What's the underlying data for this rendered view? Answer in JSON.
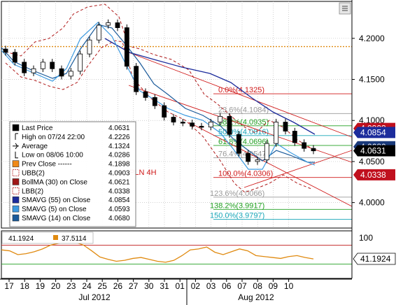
{
  "chart_data": {
    "type": "candlestick",
    "instrument_label": "PLN 4H",
    "x_labels": [
      "17",
      "18",
      "19",
      "20",
      "23",
      "24",
      "25",
      "26",
      "27",
      "30",
      "31",
      "01",
      "02",
      "03",
      "06",
      "07",
      "08",
      "09",
      "10"
    ],
    "month_labels": [
      "Jul 2012",
      "Aug 2012"
    ],
    "y_ticks": [
      "4.2000",
      "4.1500",
      "4.1000",
      "4.0500",
      "4.0000"
    ],
    "y_tick_values": [
      4.2,
      4.15,
      4.1,
      4.05,
      4.0
    ],
    "ylim": [
      3.969,
      4.245
    ],
    "ref_line": 4.19,
    "close": [
      4.183,
      4.171,
      4.158,
      4.163,
      4.171,
      4.163,
      4.154,
      4.16,
      4.181,
      4.198,
      4.216,
      4.219,
      4.213,
      4.166,
      4.135,
      4.128,
      4.118,
      4.104,
      4.098,
      4.097,
      4.093,
      4.092,
      4.098,
      4.105,
      4.083,
      4.06,
      4.05,
      4.052,
      4.072,
      4.098,
      4.087,
      4.073,
      4.066,
      4.063
    ],
    "price_tags": [
      {
        "value": "4.0903",
        "y": 4.0903,
        "bg": "#c0101e",
        "fg": "#ffffff"
      },
      {
        "value": "4.0854",
        "y": 4.0854,
        "bg": "#1c2c9c",
        "fg": "#ffffff"
      },
      {
        "value": "4.0680",
        "y": 4.068,
        "bg": "#1a3a7a",
        "fg": "#ffffff"
      },
      {
        "value": "4.0631",
        "y": 4.0631,
        "bg": "#000000",
        "fg": "#ffffff"
      },
      {
        "value": "4.0338",
        "y": 4.0338,
        "bg": "#c0101e",
        "fg": "#ffffff"
      }
    ],
    "fib_levels": [
      {
        "label": "0.0%(4.1325)",
        "y": 4.1325,
        "color": "#d01a1a"
      },
      {
        "label": "23.6%(4.1084)",
        "y": 4.1084,
        "color": "#999999"
      },
      {
        "label": "38.2%(4.0935)",
        "y": 4.0935,
        "color": "#22a022"
      },
      {
        "label": "50.0%(4.0816)",
        "y": 4.0816,
        "color": "#18a6b8"
      },
      {
        "label": "61.8%(4.0696)",
        "y": 4.0696,
        "color": "#22a022"
      },
      {
        "label": "76.4%(4.0547)",
        "y": 4.0547,
        "color": "#999999"
      },
      {
        "label": "100.0%(4.0306)",
        "y": 4.0306,
        "color": "#d01a1a"
      },
      {
        "label": "123.6%(4.0066)",
        "y": 4.0066,
        "color": "#999999"
      },
      {
        "label": "138.2%(3.9917)",
        "y": 3.9917,
        "color": "#22a022"
      },
      {
        "label": "150.0%(3.9797)",
        "y": 3.9797,
        "color": "#18a6b8"
      }
    ],
    "legend": [
      {
        "label": "Last Price",
        "value": "4.0631",
        "swatch": "#000000",
        "style": "solid"
      },
      {
        "label": "High on 07/24 22:00",
        "value": "4.2226",
        "swatch": "none",
        "style": "high"
      },
      {
        "label": "Average",
        "value": "4.1324",
        "swatch": "none",
        "style": "avg"
      },
      {
        "label": "Low on 08/06 10:00",
        "value": "4.0286",
        "swatch": "none",
        "style": "low"
      },
      {
        "label": "Prev Close ------",
        "value": "4.1898",
        "swatch": "#f08a18",
        "style": "solid"
      },
      {
        "label": "UBB(2)",
        "value": "4.0903",
        "swatch": "#ffffff",
        "style": "dash"
      },
      {
        "label": "BollMA (30) on Close",
        "value": "4.0621",
        "swatch": "#a01818",
        "style": "solid"
      },
      {
        "label": "LBB(2)",
        "value": "4.0338",
        "swatch": "#ffffff",
        "style": "dash"
      },
      {
        "label": "SMAVG (55) on Close",
        "value": "4.0854",
        "swatch": "#1c2c9c",
        "style": "solid"
      },
      {
        "label": "SMAVG (5) on Close",
        "value": "4.0593",
        "swatch": "#3c9ae0",
        "style": "solid"
      },
      {
        "label": "SMAVG (14) on Close",
        "value": "4.0680",
        "swatch": "#1a5a9a",
        "style": "solid"
      }
    ],
    "rsi": {
      "value_a": "41.1924",
      "value_b": "37.5114",
      "tick": "100",
      "tag": "41.1924",
      "values": [
        60,
        58,
        50,
        52,
        56,
        62,
        70,
        74,
        78,
        76,
        70,
        58,
        45,
        40,
        36,
        38,
        42,
        44,
        40,
        36,
        34,
        38,
        48,
        60,
        62,
        66,
        55,
        50,
        56,
        62,
        58,
        48,
        46,
        44,
        42,
        46,
        48,
        44,
        41
      ]
    }
  }
}
